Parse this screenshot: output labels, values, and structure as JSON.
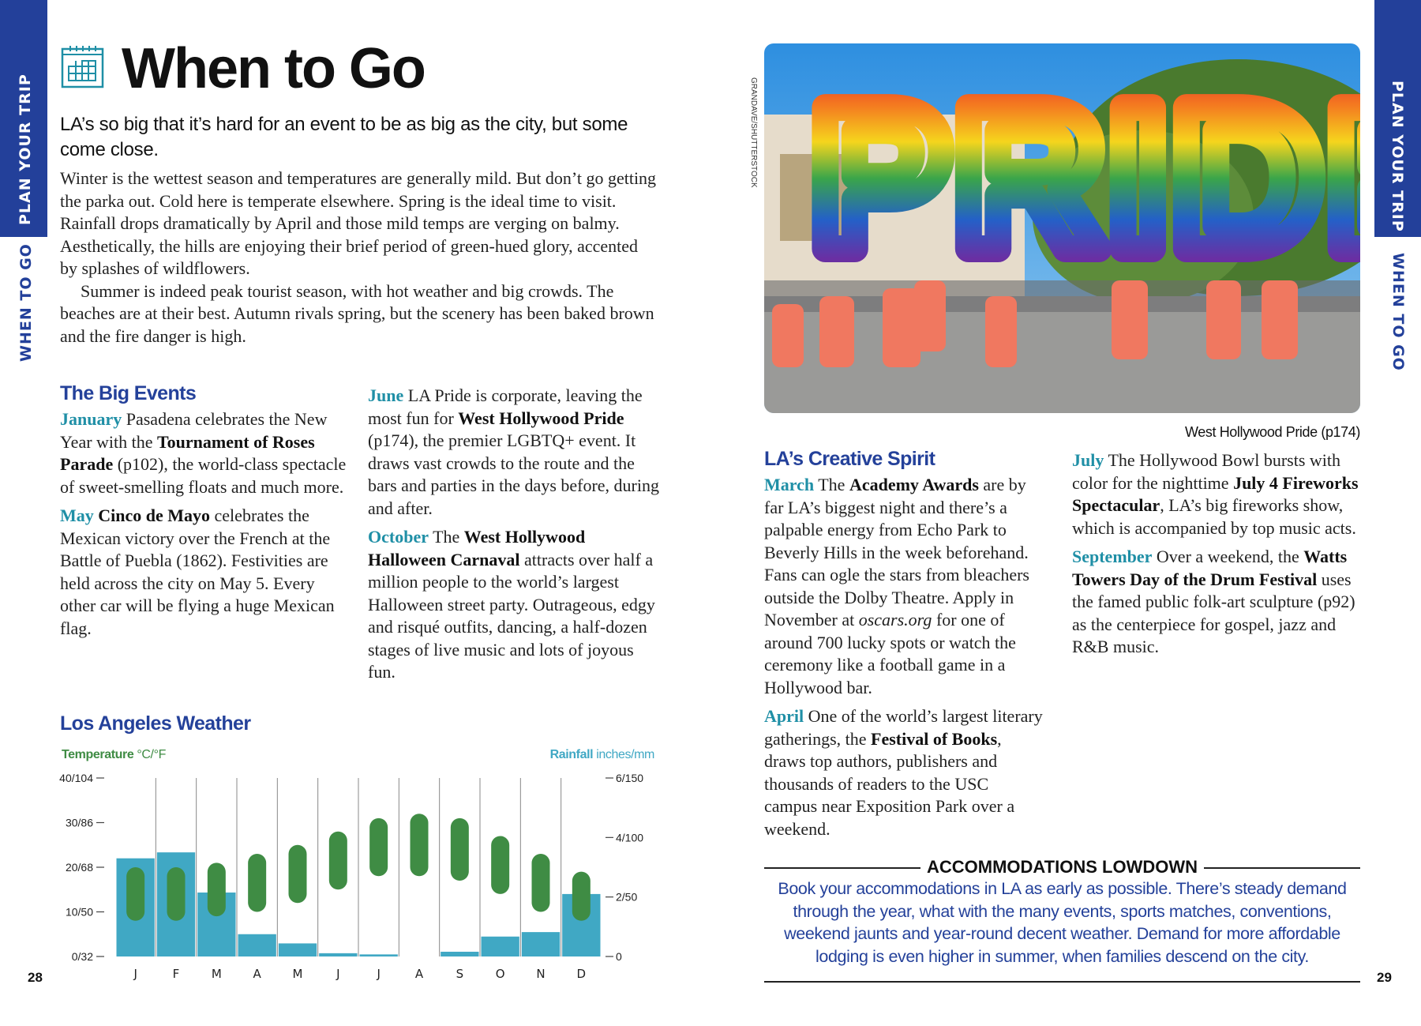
{
  "side_tabs": {
    "section": "PLAN YOUR TRIP",
    "chapter": "WHEN TO GO"
  },
  "page_numbers": {
    "left": "28",
    "right": "29"
  },
  "left": {
    "title": "When to Go",
    "intro": "LA’s so big that it’s hard for an event to be as big as the city, but some come close.",
    "body": [
      "Winter is the wettest season and temperatures are generally mild. But don’t go getting the parka out. Cold here is temperate elsewhere. Spring is the ideal time to visit. Rainfall drops dramatically by April and those mild temps are verging on balmy. Aesthetically, the hills are enjoying their brief period of green-hued glory, accented by splashes of wildflowers.",
      "Summer is indeed peak tourist season, with hot weather and big crowds. The beaches are at their best. Autumn rivals spring, but the scenery has been baked brown and the fire danger is high."
    ],
    "big_events": {
      "heading": "The Big Events",
      "col1": [
        [
          [
            "January",
            "m"
          ],
          [
            " Pasadena celebrates the New Year with the ",
            ""
          ],
          [
            "Tournament of Roses Parade",
            "b"
          ],
          [
            " (p102), the world-class spectacle of sweet-smelling floats and much more.",
            ""
          ]
        ],
        [
          [
            "May",
            "m"
          ],
          [
            " ",
            ""
          ],
          [
            "Cinco de Mayo",
            "b"
          ],
          [
            " celebrates the Mexican victory over the French at the Battle of Puebla (1862). Festivities are held across the city on May 5. Every other car will be flying a huge Mexican flag.",
            ""
          ]
        ]
      ],
      "col2": [
        [
          [
            "June",
            "m"
          ],
          [
            " LA Pride is corporate, leaving the most fun for ",
            ""
          ],
          [
            "West Hollywood Pride",
            "b"
          ],
          [
            " (p174), the premier LGBTQ+ event. It draws vast crowds to the route and the bars and parties in the days before, during and after.",
            ""
          ]
        ],
        [
          [
            "October",
            "m"
          ],
          [
            " The ",
            ""
          ],
          [
            "West Hollywood Halloween Carnaval",
            "b"
          ],
          [
            " attracts over half a million people to the world’s largest Halloween street party. Outrageous, edgy and risqué outfits, dancing, a half-dozen stages of live music and lots of joyous fun.",
            ""
          ]
        ]
      ]
    },
    "weather_heading": "Los Angeles Weather"
  },
  "chart_data": {
    "type": "bar",
    "title": "Los Angeles Weather",
    "left_axis": {
      "label_bold": "Temperature",
      "label_unit": "°C/°F",
      "values": [
        0,
        10,
        20,
        30,
        40
      ],
      "tick_labels": [
        "0/32",
        "10/50",
        "20/68",
        "30/86",
        "40/104"
      ],
      "range": [
        0,
        40
      ]
    },
    "right_axis": {
      "label_bold": "Rainfall",
      "label_unit": "inches/mm",
      "values": [
        0,
        2,
        4,
        6
      ],
      "tick_labels": [
        "0",
        "2/50",
        "4/100",
        "6/150"
      ],
      "range": [
        0,
        6
      ]
    },
    "categories": [
      "J",
      "F",
      "M",
      "A",
      "M",
      "J",
      "J",
      "A",
      "S",
      "O",
      "N",
      "D"
    ],
    "series": [
      {
        "name": "Temperature high (°C)",
        "values": [
          20,
          20,
          21,
          23,
          25,
          28,
          31,
          32,
          31,
          27,
          23,
          19
        ]
      },
      {
        "name": "Temperature low (°C)",
        "values": [
          8,
          8,
          9,
          10,
          12,
          15,
          18,
          18,
          17,
          14,
          10,
          8
        ]
      },
      {
        "name": "Rainfall (inches)",
        "values": [
          3.3,
          3.5,
          2.15,
          0.75,
          0.44,
          0.11,
          0.07,
          0,
          0.16,
          0.67,
          0.82,
          2.1
        ]
      }
    ],
    "colors": {
      "temperature": "#3f8c44",
      "rainfall": "#40a8c4"
    }
  },
  "right": {
    "photo_credit": "GRANDAVE/SHUTTERSTOCK",
    "photo_caption": "West Hollywood Pride (p174)",
    "photo_sign": "PRIDE",
    "heading": "LA’s Creative Spirit",
    "col1": [
      [
        [
          "March",
          "m"
        ],
        [
          " The ",
          ""
        ],
        [
          "Academy Awards",
          "b"
        ],
        [
          " are by far LA’s biggest night and there’s a palpable energy from Echo Park to Beverly Hills in the week beforehand. Fans can ogle the stars from bleachers outside the Dolby Theatre. Apply in November at ",
          ""
        ],
        [
          "oscars.org",
          "i"
        ],
        [
          " for one of around 700 lucky spots or watch the ceremony like a football game in a Hollywood bar.",
          ""
        ]
      ],
      [
        [
          "April",
          "m"
        ],
        [
          " One of the world’s largest literary gatherings, the ",
          ""
        ],
        [
          "Festival of Books",
          "b"
        ],
        [
          ", draws top authors, publishers and thousands of readers to the USC campus near Exposition Park over a weekend.",
          ""
        ]
      ]
    ],
    "col2": [
      [
        [
          "July",
          "m"
        ],
        [
          " The Hollywood Bowl bursts with color for the nighttime ",
          ""
        ],
        [
          "July 4 Fireworks Spectacular",
          "b"
        ],
        [
          ", LA’s big fireworks show, which is accompanied by top music acts.",
          ""
        ]
      ],
      [
        [
          "September",
          "m"
        ],
        [
          " Over a weekend, the ",
          ""
        ],
        [
          "Watts Towers Day of the Drum Festival",
          "b"
        ],
        [
          " uses the famed public folk-art sculpture (p92) as the centerpiece for gospel, jazz and R&B music.",
          ""
        ]
      ]
    ],
    "accommodations": {
      "heading": "ACCOMMODATIONS LOWDOWN",
      "body": "Book your accommodations in LA as early as possible. There’s steady demand through the year, what with the many events, sports matches, conventions, weekend jaunts and year-round decent weather. Demand for more affordable lodging is even higher in summer, when families descend on the city."
    }
  }
}
